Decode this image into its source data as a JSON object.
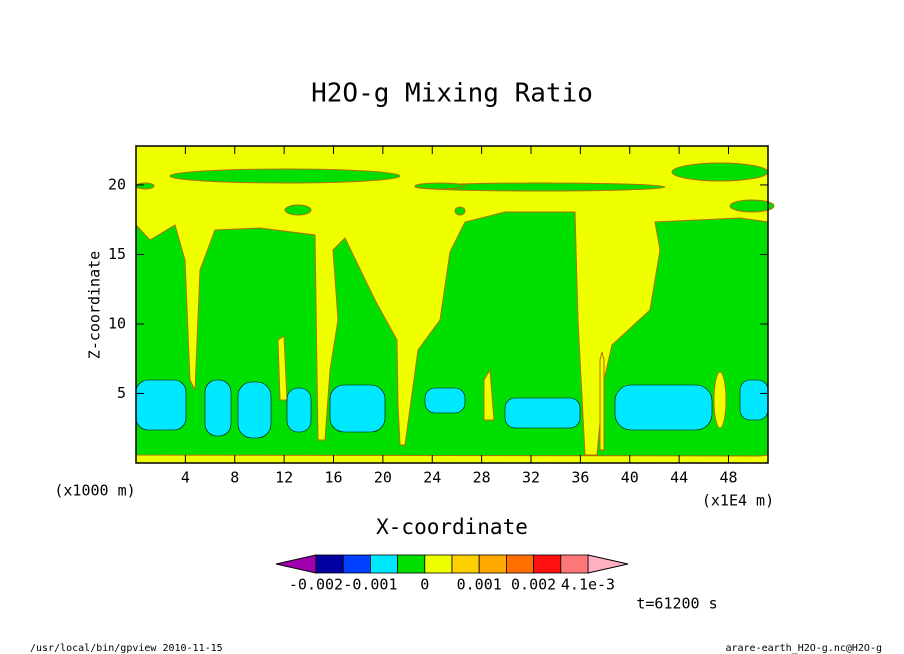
{
  "chart_data": {
    "type": "contour",
    "title": "H2O-g Mixing Ratio",
    "x_label": "X-coordinate",
    "y_label": "Z-coordinate",
    "x_unit": "(x1E4 m)",
    "y_unit": "(x1000 m)",
    "xlim": [
      0,
      51.2
    ],
    "xticks": [
      4,
      8,
      12,
      16,
      20,
      24,
      28,
      32,
      36,
      40,
      44,
      48
    ],
    "ylim": [
      0,
      22.8
    ],
    "yticks": [
      5,
      10,
      15,
      20
    ],
    "colorbar": {
      "levels": [
        -0.002,
        -0.0015,
        -0.001,
        -0.0005,
        0,
        0.0005,
        0.001,
        0.0015,
        0.002,
        0.003,
        0.0041
      ],
      "colors": [
        "#0000a0",
        "#0040ff",
        "#00e8ff",
        "#00e000",
        "#f0ff00",
        "#ffd000",
        "#ffa800",
        "#ff7000",
        "#ff1010",
        "#ff7878"
      ],
      "under_color": "#a000b0",
      "over_color": "#ffb0c0",
      "ticks": [
        -0.002,
        -0.001,
        0,
        0.001,
        0.002,
        {
          "value": 0.0041,
          "label": "4.1e-3"
        }
      ]
    },
    "time_label": "t=61200 s",
    "footer_left": "/usr/local/bin/gpview  2010-11-15",
    "footer_right": "arare-earth_H2O-g.nc@H2O-g"
  }
}
